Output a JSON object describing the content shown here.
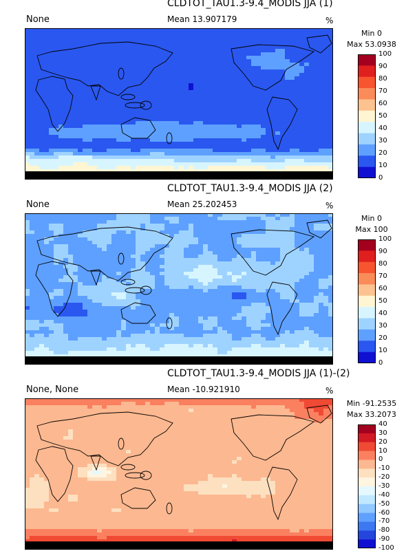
{
  "panels": [
    {
      "title": "CLDTOT_TAU1.3-9.4_MODIS JJA (1)",
      "left_label": "None",
      "mean": "Mean 13.907179",
      "units": "%",
      "min": "Min 0",
      "max": "Max 53.0938",
      "levels": [
        "100",
        "90",
        "80",
        "70",
        "60",
        "50",
        "40",
        "30",
        "20",
        "10",
        "0"
      ],
      "colors": [
        "#a3001f",
        "#e0201e",
        "#f8552e",
        "#fa8c5a",
        "#fcc390",
        "#fff5d2",
        "#d7f5ff",
        "#9fd3ff",
        "#5ea0ff",
        "#2a57ef",
        "#1010d2"
      ],
      "style": "low"
    },
    {
      "title": "CLDTOT_TAU1.3-9.4_MODIS JJA (2)",
      "left_label": "None",
      "mean": "Mean 25.202453",
      "units": "%",
      "min": "Min 0",
      "max": "Max 100",
      "levels": [
        "100",
        "90",
        "80",
        "70",
        "60",
        "50",
        "40",
        "30",
        "20",
        "10",
        "0"
      ],
      "colors": [
        "#a3001f",
        "#e0201e",
        "#f8552e",
        "#fa8c5a",
        "#fcc390",
        "#fff5d2",
        "#d7f5ff",
        "#9fd3ff",
        "#5ea0ff",
        "#2a57ef",
        "#1010d2"
      ],
      "style": "mid"
    },
    {
      "title": "CLDTOT_TAU1.3-9.4_MODIS JJA (1)-(2)",
      "left_label": "None, None",
      "mean": "Mean -10.921910",
      "units": "%",
      "min": "Min -91.2535",
      "max": "Max 33.2073",
      "levels": [
        "40",
        "30",
        "20",
        "10",
        "0",
        "-10",
        "-20",
        "-30",
        "-40",
        "-50",
        "-60",
        "-70",
        "-80",
        "-90",
        "-100"
      ],
      "colors": [
        "#a3001f",
        "#d21a24",
        "#f04a34",
        "#fa8060",
        "#fcb890",
        "#fde0c0",
        "#fff5e0",
        "#e6f8ff",
        "#c0e8ff",
        "#90c8ff",
        "#60a0ff",
        "#3c78f0",
        "#2446dc",
        "#1010d2"
      ],
      "style": "diff"
    }
  ],
  "chart_data": [
    {
      "type": "heatmap",
      "title": "CLDTOT_TAU1.3-9.4_MODIS JJA (1)",
      "mean": 13.907179,
      "min": 0,
      "max": 53.0938,
      "units": "%",
      "levels": [
        0,
        10,
        20,
        30,
        40,
        50,
        60,
        70,
        80,
        90,
        100
      ],
      "dominant_range": [
        0,
        20
      ]
    },
    {
      "type": "heatmap",
      "title": "CLDTOT_TAU1.3-9.4_MODIS JJA (2)",
      "mean": 25.202453,
      "min": 0,
      "max": 100,
      "units": "%",
      "levels": [
        0,
        10,
        20,
        30,
        40,
        50,
        60,
        70,
        80,
        90,
        100
      ],
      "dominant_range": [
        10,
        40
      ]
    },
    {
      "type": "heatmap",
      "title": "CLDTOT_TAU1.3-9.4_MODIS JJA (1)-(2)",
      "mean": -10.92191,
      "min": -91.2535,
      "max": 33.2073,
      "units": "%",
      "levels": [
        -100,
        -90,
        -80,
        -70,
        -60,
        -50,
        -40,
        -30,
        -20,
        -10,
        0,
        10,
        20,
        30,
        40
      ],
      "dominant_range": [
        -20,
        0
      ]
    }
  ]
}
